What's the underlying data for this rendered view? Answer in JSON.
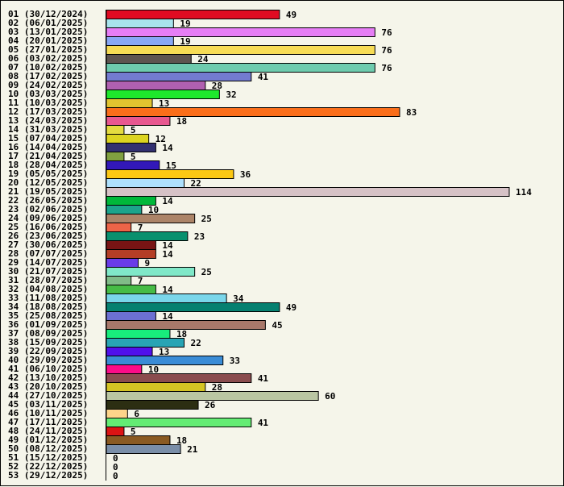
{
  "chart_data": {
    "type": "bar",
    "orientation": "horizontal",
    "title": "",
    "xlabel": "",
    "ylabel": "",
    "xlim": [
      0,
      114
    ],
    "grid": false,
    "categories": [
      "01 (30/12/2024)",
      "02 (06/01/2025)",
      "03 (13/01/2025)",
      "04 (20/01/2025)",
      "05 (27/01/2025)",
      "06 (03/02/2025)",
      "07 (10/02/2025)",
      "08 (17/02/2025)",
      "09 (24/02/2025)",
      "10 (03/03/2025)",
      "11 (10/03/2025)",
      "12 (17/03/2025)",
      "13 (24/03/2025)",
      "14 (31/03/2025)",
      "15 (07/04/2025)",
      "16 (14/04/2025)",
      "17 (21/04/2025)",
      "18 (28/04/2025)",
      "19 (05/05/2025)",
      "20 (12/05/2025)",
      "21 (19/05/2025)",
      "22 (26/05/2025)",
      "23 (02/06/2025)",
      "24 (09/06/2025)",
      "25 (16/06/2025)",
      "26 (23/06/2025)",
      "27 (30/06/2025)",
      "28 (07/07/2025)",
      "29 (14/07/2025)",
      "30 (21/07/2025)",
      "31 (28/07/2025)",
      "32 (04/08/2025)",
      "33 (11/08/2025)",
      "34 (18/08/2025)",
      "35 (25/08/2025)",
      "36 (01/09/2025)",
      "37 (08/09/2025)",
      "38 (15/09/2025)",
      "39 (22/09/2025)",
      "40 (29/09/2025)",
      "41 (06/10/2025)",
      "42 (13/10/2025)",
      "43 (20/10/2025)",
      "44 (27/10/2025)",
      "45 (03/11/2025)",
      "46 (10/11/2025)",
      "47 (17/11/2025)",
      "48 (24/11/2025)",
      "49 (01/12/2025)",
      "50 (08/12/2025)",
      "51 (15/12/2025)",
      "52 (22/12/2025)",
      "53 (29/12/2025)"
    ],
    "values": [
      49,
      19,
      76,
      19,
      76,
      24,
      76,
      41,
      28,
      32,
      13,
      83,
      18,
      5,
      12,
      14,
      5,
      15,
      36,
      22,
      114,
      14,
      10,
      25,
      7,
      23,
      14,
      14,
      9,
      25,
      7,
      14,
      34,
      49,
      14,
      45,
      18,
      22,
      13,
      33,
      10,
      41,
      28,
      60,
      26,
      6,
      41,
      5,
      18,
      21,
      0,
      0,
      0
    ],
    "colors": [
      "#e00b22",
      "#a8e4ec",
      "#e67ef5",
      "#88a8f5",
      "#f7dc55",
      "#5e5450",
      "#6ecbae",
      "#737bd0",
      "#b060b0",
      "#1ee82c",
      "#e0c430",
      "#fa6e1a",
      "#e85890",
      "#e4dc40",
      "#dcd420",
      "#323070",
      "#80a040",
      "#3218b8",
      "#fcc814",
      "#aee0fc",
      "#d6c2c6",
      "#00b83a",
      "#1ca48c",
      "#ac8468",
      "#ec6448",
      "#08906e",
      "#781414",
      "#b43e26",
      "#6a3ce8",
      "#80e8c8",
      "#80bc88",
      "#46bc46",
      "#7ad6ea",
      "#068070",
      "#6c70d2",
      "#a8786a",
      "#18ec7c",
      "#28a4b4",
      "#5010ec",
      "#3a8cd6",
      "#fc0c88",
      "#8a4c4e",
      "#d4c424",
      "#bac6a2",
      "#2c2e12",
      "#fcd48a",
      "#64ec74",
      "#dc1414",
      "#8a5a22",
      "#7a8ea8",
      "#cccccc",
      "#cccccc",
      "#cccccc"
    ]
  }
}
